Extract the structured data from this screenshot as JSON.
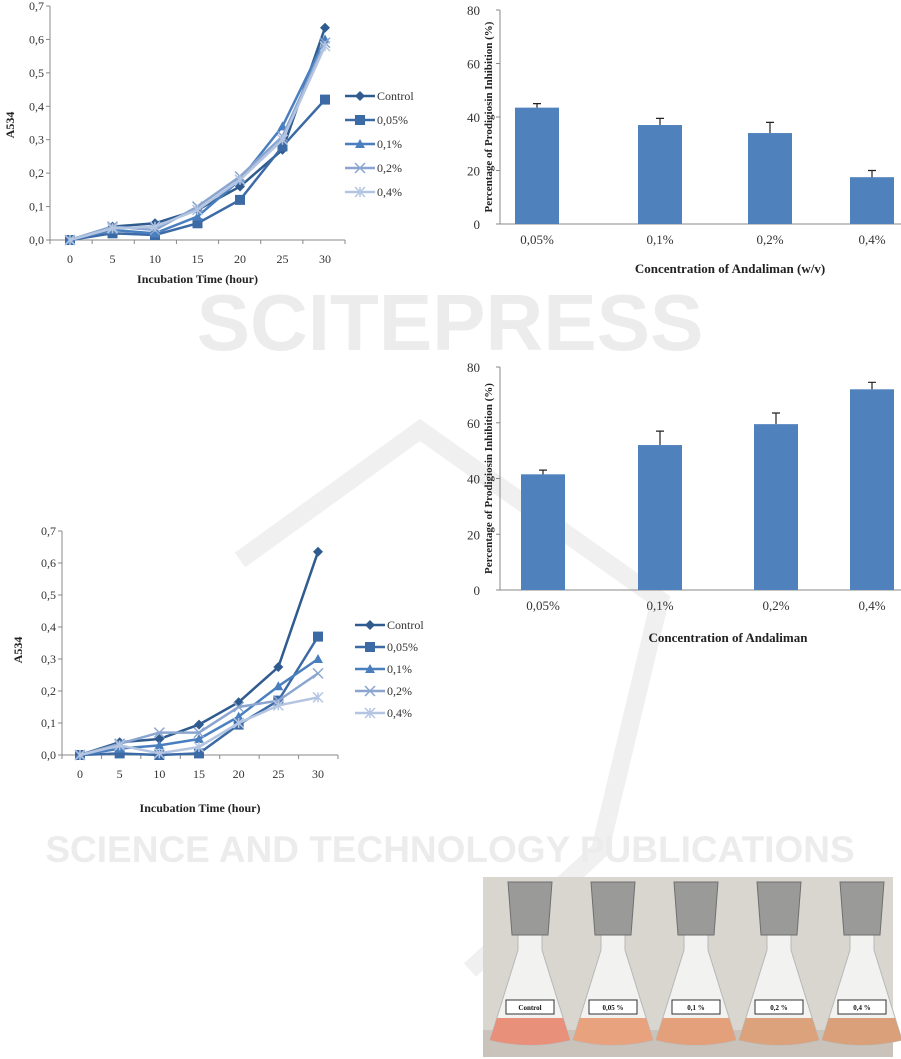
{
  "watermark": {
    "title": "SCITEPRESS",
    "subtitle": "SCIENCE AND TECHNOLOGY PUBLICATIONS"
  },
  "chart_data": [
    {
      "type": "line",
      "title": "",
      "xlabel": "Incubation Time (hour)",
      "ylabel": "A534",
      "x": [
        0,
        5,
        10,
        15,
        20,
        25,
        30
      ],
      "xticks": [
        "0",
        "5",
        "10",
        "15",
        "20",
        "25",
        "30"
      ],
      "yticks": [
        "0,0",
        "0,1",
        "0,2",
        "0,3",
        "0,4",
        "0,5",
        "0,6",
        "0,7"
      ],
      "ylim": [
        0,
        0.7
      ],
      "legend_position": "right",
      "series": [
        {
          "name": "Control",
          "marker": "diamond",
          "color": "#2f5b8f",
          "values": [
            0,
            0.04,
            0.05,
            0.09,
            0.16,
            0.27,
            0.635
          ]
        },
        {
          "name": "0,05%",
          "marker": "square",
          "color": "#3c6aa5",
          "values": [
            0,
            0.02,
            0.015,
            0.05,
            0.12,
            0.28,
            0.42
          ]
        },
        {
          "name": "0,1%",
          "marker": "triangle",
          "color": "#4a7fbf",
          "values": [
            0,
            0.03,
            0.02,
            0.07,
            0.18,
            0.34,
            0.6
          ]
        },
        {
          "name": "0,2%",
          "marker": "x",
          "color": "#8aa5cf",
          "values": [
            0,
            0.04,
            0.03,
            0.1,
            0.19,
            0.31,
            0.59
          ]
        },
        {
          "name": "0,4%",
          "marker": "star",
          "color": "#b4c5e2",
          "values": [
            0,
            0.035,
            0.04,
            0.09,
            0.18,
            0.3,
            0.58
          ]
        }
      ]
    },
    {
      "type": "bar",
      "title": "",
      "xlabel": "Concentration of Andaliman (w/v)",
      "ylabel": "Percentage of Prodigiosin Inhibition (%)",
      "categories": [
        "0,05%",
        "0,1%",
        "0,2%",
        "0,4%"
      ],
      "values": [
        43.5,
        37,
        34,
        17.5
      ],
      "errors": [
        1.5,
        2.5,
        4,
        2.5
      ],
      "yticks": [
        "0",
        "20",
        "40",
        "60",
        "80"
      ],
      "ylim": [
        0,
        80
      ],
      "color": "#4f81bd"
    },
    {
      "type": "line",
      "title": "",
      "xlabel": "Incubation Time (hour)",
      "ylabel": "A534",
      "x": [
        0,
        5,
        10,
        15,
        20,
        25,
        30
      ],
      "xticks": [
        "0",
        "5",
        "10",
        "15",
        "20",
        "25",
        "30"
      ],
      "yticks": [
        "0,0",
        "0,1",
        "0,2",
        "0,3",
        "0,4",
        "0,5",
        "0,6",
        "0,7"
      ],
      "ylim": [
        0,
        0.7
      ],
      "legend_position": "right",
      "series": [
        {
          "name": "Control",
          "marker": "diamond",
          "color": "#2f5b8f",
          "values": [
            0,
            0.04,
            0.05,
            0.095,
            0.165,
            0.275,
            0.635
          ]
        },
        {
          "name": "0,05%",
          "marker": "square",
          "color": "#3c6aa5",
          "values": [
            0,
            0.005,
            0,
            0.005,
            0.095,
            0.17,
            0.37
          ]
        },
        {
          "name": "0,1%",
          "marker": "triangle",
          "color": "#4a7fbf",
          "values": [
            0,
            0.02,
            0.03,
            0.05,
            0.12,
            0.215,
            0.3
          ]
        },
        {
          "name": "0,2%",
          "marker": "x",
          "color": "#8aa5cf",
          "values": [
            0,
            0.035,
            0.07,
            0.07,
            0.15,
            0.17,
            0.255
          ]
        },
        {
          "name": "0,4%",
          "marker": "star",
          "color": "#b4c5e2",
          "values": [
            0,
            0.03,
            0.005,
            0.025,
            0.1,
            0.155,
            0.18
          ]
        }
      ]
    },
    {
      "type": "bar",
      "title": "",
      "xlabel": "Concentration of Andaliman",
      "ylabel": "Percentage of Prodigiosin Inhibition (%)",
      "categories": [
        "0,05%",
        "0,1%",
        "0,2%",
        "0,4%"
      ],
      "values": [
        41.5,
        52,
        59.5,
        72
      ],
      "errors": [
        1.5,
        5,
        4,
        2.5
      ],
      "yticks": [
        "0",
        "20",
        "40",
        "60",
        "80"
      ],
      "ylim": [
        0,
        80
      ],
      "color": "#4f81bd"
    }
  ],
  "photo": {
    "labels": [
      "Control",
      "0,05 %",
      "0,1 %",
      "0,2 %",
      "0,4 %"
    ]
  }
}
